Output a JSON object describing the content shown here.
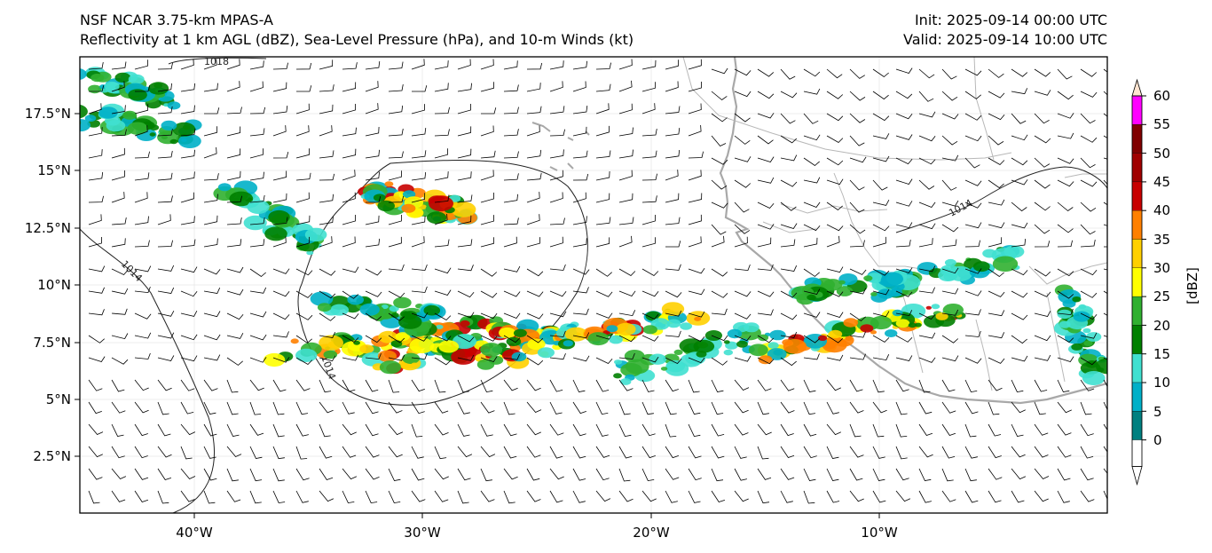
{
  "titles": {
    "left_line1": "NSF NCAR 3.75-km MPAS-A",
    "left_line2": "Reflectivity at 1 km AGL (dBZ), Sea-Level Pressure (hPa), and 10-m Winds (kt)",
    "right_line1": "Init: 2025-09-14 00:00 UTC",
    "right_line2": "Valid: 2025-09-14 10:00 UTC"
  },
  "axes": {
    "lon_ticks": [
      "40°W",
      "30°W",
      "20°W",
      "10°W"
    ],
    "lat_ticks": [
      "17.5°N",
      "15°N",
      "12.5°N",
      "10°N",
      "7.5°N",
      "5°N",
      "2.5°N"
    ]
  },
  "contour_labels": [
    "1018",
    "1014",
    "1014",
    "1014"
  ],
  "colorbar": {
    "label": "[dBZ]",
    "ticks": [
      "60",
      "55",
      "50",
      "45",
      "40",
      "35",
      "30",
      "25",
      "20",
      "15",
      "10",
      "5",
      "0"
    ],
    "colors_bottom_to_top": [
      "#ffffff",
      "#008080",
      "#00b0c8",
      "#40e0d0",
      "#008000",
      "#30b030",
      "#ffff00",
      "#ffd000",
      "#ff8000",
      "#c80000",
      "#a00000",
      "#800000",
      "#ff00ff",
      "#ffe4d0"
    ]
  },
  "colors": {
    "coastline": "#a8a8a8",
    "border": "#b8b8b8",
    "isobar": "#222222",
    "barb": "#000000",
    "grid": "#e8e8e8"
  }
}
